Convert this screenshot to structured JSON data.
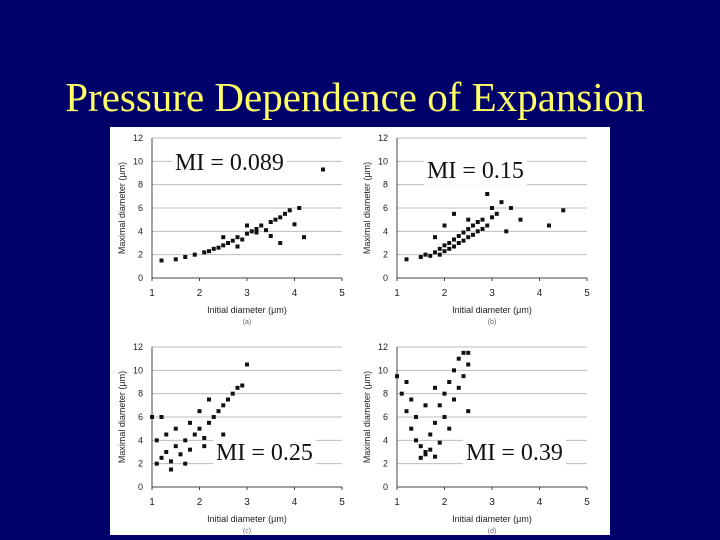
{
  "slide": {
    "title": "Pressure Dependence of Expansion"
  },
  "chart_data": [
    {
      "type": "scatter",
      "panel": "(a)",
      "annotation": "MI = 0.089",
      "xlabel": "Initial diameter (μm)",
      "ylabel": "Maximal diameter (μm)",
      "xlim": [
        1,
        5
      ],
      "ylim": [
        0,
        12
      ],
      "xticks": [
        "1",
        "2",
        "3",
        "4",
        "5"
      ],
      "yticks": [
        "0",
        "2",
        "4",
        "6",
        "8",
        "10",
        "12"
      ],
      "grid": true,
      "points": [
        [
          1.2,
          1.5
        ],
        [
          1.5,
          1.6
        ],
        [
          1.7,
          1.8
        ],
        [
          1.9,
          2.0
        ],
        [
          2.1,
          2.2
        ],
        [
          2.2,
          2.3
        ],
        [
          2.3,
          2.5
        ],
        [
          2.4,
          2.6
        ],
        [
          2.5,
          2.8
        ],
        [
          2.6,
          3.0
        ],
        [
          2.7,
          3.2
        ],
        [
          2.8,
          3.5
        ],
        [
          2.9,
          3.3
        ],
        [
          3.0,
          3.8
        ],
        [
          3.1,
          4.0
        ],
        [
          3.2,
          4.2
        ],
        [
          3.3,
          4.5
        ],
        [
          3.4,
          4.1
        ],
        [
          3.5,
          4.8
        ],
        [
          3.6,
          5.0
        ],
        [
          3.7,
          5.2
        ],
        [
          3.8,
          5.5
        ],
        [
          3.9,
          5.8
        ],
        [
          4.1,
          6.0
        ],
        [
          2.5,
          3.5
        ],
        [
          3.0,
          4.5
        ],
        [
          2.8,
          2.7
        ],
        [
          3.5,
          3.6
        ],
        [
          3.2,
          3.9
        ],
        [
          4.0,
          4.6
        ],
        [
          3.7,
          3.0
        ],
        [
          4.2,
          3.5
        ],
        [
          3.1,
          9.5
        ],
        [
          4.6,
          9.3
        ]
      ]
    },
    {
      "type": "scatter",
      "panel": "(b)",
      "annotation": "MI = 0.15",
      "xlabel": "Initial diameter (μm)",
      "ylabel": "Maximal diameter (μm)",
      "xlim": [
        1,
        5
      ],
      "ylim": [
        0,
        12
      ],
      "xticks": [
        "1",
        "2",
        "3",
        "4",
        "5"
      ],
      "yticks": [
        "0",
        "2",
        "4",
        "6",
        "8",
        "10",
        "12"
      ],
      "grid": true,
      "points": [
        [
          1.2,
          1.6
        ],
        [
          1.5,
          1.8
        ],
        [
          1.6,
          2.0
        ],
        [
          1.7,
          1.9
        ],
        [
          1.8,
          2.2
        ],
        [
          1.9,
          2.0
        ],
        [
          1.9,
          2.5
        ],
        [
          2.0,
          2.3
        ],
        [
          2.0,
          2.8
        ],
        [
          2.1,
          2.5
        ],
        [
          2.1,
          3.0
        ],
        [
          2.2,
          2.7
        ],
        [
          2.2,
          3.3
        ],
        [
          2.3,
          3.0
        ],
        [
          2.3,
          3.6
        ],
        [
          2.4,
          3.2
        ],
        [
          2.4,
          3.9
        ],
        [
          2.5,
          3.5
        ],
        [
          2.5,
          4.2
        ],
        [
          2.6,
          3.7
        ],
        [
          2.6,
          4.5
        ],
        [
          2.7,
          4.0
        ],
        [
          2.7,
          4.8
        ],
        [
          2.8,
          4.2
        ],
        [
          2.8,
          5.0
        ],
        [
          2.9,
          4.5
        ],
        [
          3.0,
          5.2
        ],
        [
          3.0,
          6.0
        ],
        [
          3.1,
          5.5
        ],
        [
          3.2,
          6.5
        ],
        [
          3.4,
          6.0
        ],
        [
          3.6,
          5.0
        ],
        [
          4.5,
          5.8
        ],
        [
          4.2,
          4.5
        ],
        [
          3.3,
          4.0
        ],
        [
          2.0,
          4.5
        ],
        [
          1.8,
          3.5
        ],
        [
          2.2,
          5.5
        ],
        [
          2.5,
          5.0
        ],
        [
          2.9,
          7.2
        ]
      ]
    },
    {
      "type": "scatter",
      "panel": "(c)",
      "annotation": "MI = 0.25",
      "xlabel": "Initial diameter (μm)",
      "ylabel": "Maximal diameter (μm)",
      "xlim": [
        1,
        5
      ],
      "ylim": [
        0,
        12
      ],
      "xticks": [
        "1",
        "2",
        "3",
        "4",
        "5"
      ],
      "yticks": [
        "0",
        "2",
        "4",
        "6",
        "8",
        "10",
        "12"
      ],
      "grid": true,
      "points": [
        [
          1.1,
          2.0
        ],
        [
          1.2,
          2.5
        ],
        [
          1.3,
          3.0
        ],
        [
          1.4,
          2.2
        ],
        [
          1.5,
          3.5
        ],
        [
          1.6,
          2.8
        ],
        [
          1.7,
          4.0
        ],
        [
          1.8,
          3.2
        ],
        [
          1.9,
          4.5
        ],
        [
          2.0,
          5.0
        ],
        [
          2.1,
          4.2
        ],
        [
          2.2,
          5.5
        ],
        [
          2.3,
          6.0
        ],
        [
          2.4,
          6.5
        ],
        [
          2.5,
          7.0
        ],
        [
          2.6,
          7.5
        ],
        [
          2.7,
          8.0
        ],
        [
          2.8,
          8.5
        ],
        [
          2.2,
          7.5
        ],
        [
          2.0,
          6.5
        ],
        [
          1.8,
          5.5
        ],
        [
          1.5,
          5.0
        ],
        [
          1.3,
          4.5
        ],
        [
          1.2,
          6.0
        ],
        [
          1.1,
          4.0
        ],
        [
          1.0,
          6.0
        ],
        [
          2.9,
          8.7
        ],
        [
          2.5,
          4.5
        ],
        [
          2.1,
          3.5
        ],
        [
          1.7,
          2.0
        ],
        [
          1.4,
          1.5
        ],
        [
          3.0,
          10.5
        ]
      ]
    },
    {
      "type": "scatter",
      "panel": "(d)",
      "annotation": "MI = 0.39",
      "xlabel": "Initial diameter (μm)",
      "ylabel": "Maximal diameter (μm)",
      "xlim": [
        1,
        5
      ],
      "ylim": [
        0,
        12
      ],
      "xticks": [
        "1",
        "2",
        "3",
        "4",
        "5"
      ],
      "yticks": [
        "0",
        "2",
        "4",
        "6",
        "8",
        "10",
        "12"
      ],
      "grid": true,
      "points": [
        [
          1.0,
          9.5
        ],
        [
          1.1,
          8.0
        ],
        [
          1.2,
          6.5
        ],
        [
          1.3,
          5.0
        ],
        [
          1.4,
          4.0
        ],
        [
          1.5,
          3.5
        ],
        [
          1.6,
          3.0
        ],
        [
          1.7,
          4.5
        ],
        [
          1.8,
          5.5
        ],
        [
          1.9,
          7.0
        ],
        [
          2.0,
          8.0
        ],
        [
          2.1,
          9.0
        ],
        [
          2.2,
          10.0
        ],
        [
          2.3,
          11.0
        ],
        [
          2.4,
          11.5
        ],
        [
          2.5,
          11.5
        ],
        [
          1.5,
          2.5
        ],
        [
          1.6,
          2.8
        ],
        [
          1.7,
          3.2
        ],
        [
          1.8,
          2.6
        ],
        [
          1.9,
          3.8
        ],
        [
          1.4,
          6.0
        ],
        [
          1.3,
          7.5
        ],
        [
          1.2,
          9.0
        ],
        [
          2.0,
          6.0
        ],
        [
          2.1,
          5.0
        ],
        [
          2.2,
          7.5
        ],
        [
          2.3,
          8.5
        ],
        [
          2.4,
          9.5
        ],
        [
          2.5,
          10.5
        ],
        [
          1.8,
          8.5
        ],
        [
          1.6,
          7.0
        ],
        [
          2.5,
          6.5
        ]
      ]
    }
  ]
}
